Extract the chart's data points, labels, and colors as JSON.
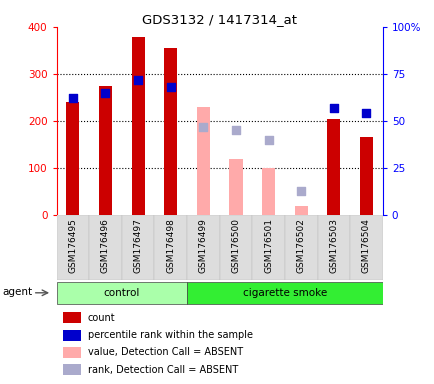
{
  "title": "GDS3132 / 1417314_at",
  "samples": [
    "GSM176495",
    "GSM176496",
    "GSM176497",
    "GSM176498",
    "GSM176499",
    "GSM176500",
    "GSM176501",
    "GSM176502",
    "GSM176503",
    "GSM176504"
  ],
  "count": [
    240,
    275,
    378,
    355,
    null,
    null,
    null,
    null,
    205,
    165
  ],
  "count_absent": [
    null,
    null,
    null,
    null,
    230,
    120,
    100,
    20,
    null,
    null
  ],
  "percentile_rank": [
    62,
    65,
    72,
    68,
    null,
    null,
    null,
    null,
    57,
    54
  ],
  "rank_absent": [
    null,
    null,
    null,
    null,
    47,
    45,
    40,
    13,
    null,
    null
  ],
  "bar_color_present": "#cc0000",
  "bar_color_absent": "#ffaaaa",
  "dot_color_present": "#0000cc",
  "dot_color_absent": "#aaaacc",
  "group_control_color": "#aaffaa",
  "group_smoke_color": "#33ee33",
  "ylim_left": [
    0,
    400
  ],
  "ylim_right": [
    0,
    100
  ],
  "left_ticks": [
    0,
    100,
    200,
    300,
    400
  ],
  "right_ticks": [
    0,
    25,
    50,
    75,
    100
  ],
  "right_tick_labels": [
    "0",
    "25",
    "50",
    "75",
    "100%"
  ],
  "agent_label": "agent",
  "control_label": "control",
  "smoke_label": "cigarette smoke",
  "legend": [
    {
      "label": "count",
      "color": "#cc0000"
    },
    {
      "label": "percentile rank within the sample",
      "color": "#0000cc"
    },
    {
      "label": "value, Detection Call = ABSENT",
      "color": "#ffaaaa"
    },
    {
      "label": "rank, Detection Call = ABSENT",
      "color": "#aaaacc"
    }
  ],
  "bar_width": 0.4,
  "dot_size": 40,
  "n_control": 4,
  "n_total": 10
}
